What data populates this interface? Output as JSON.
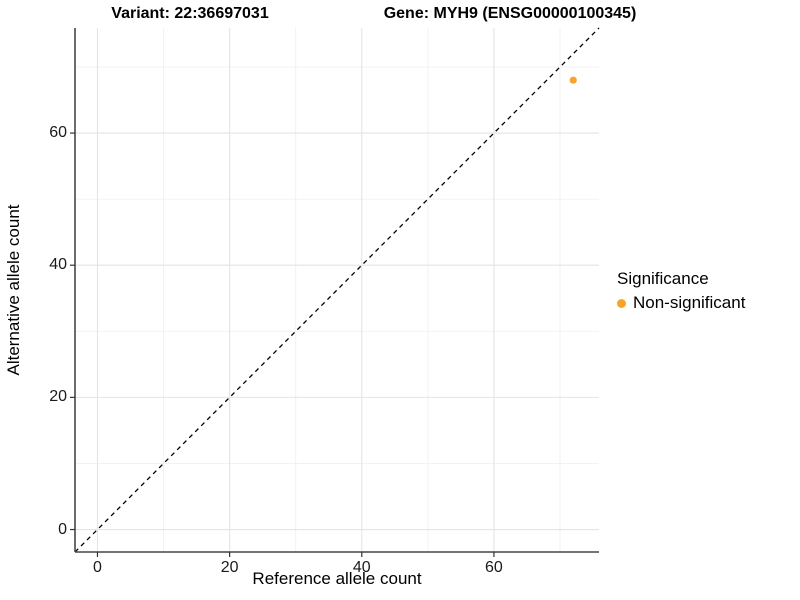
{
  "titles": {
    "variant": "Variant: 22:36697031",
    "gene": "Gene: MYH9 (ENSG00000100345)"
  },
  "axes": {
    "x_label": "Reference allele count",
    "y_label": "Alternative allele count",
    "x_ticks": [
      0,
      20,
      40,
      60
    ],
    "y_ticks": [
      0,
      20,
      40,
      60
    ],
    "x_tick_labels": [
      "0",
      "20",
      "40",
      "60"
    ],
    "y_tick_labels": [
      "0",
      "20",
      "40",
      "60"
    ],
    "x_minor_ticks": [
      10,
      30,
      50,
      70
    ],
    "y_minor_ticks": [
      10,
      30,
      50,
      70
    ],
    "xlim": [
      -3.4,
      75.9
    ],
    "ylim": [
      -3.4,
      75.9
    ]
  },
  "legend": {
    "title": "Significance",
    "items": [
      {
        "label": "Non-significant",
        "color": "#F8A428"
      }
    ]
  },
  "colors": {
    "point": "#F8A428",
    "major_grid": "#E4E4E4",
    "minor_grid": "#F1F1F1",
    "axis_line": "#474747",
    "tick_mark": "#333333",
    "identity_line": "#000000"
  },
  "chart_data": {
    "type": "scatter",
    "title": "Variant: 22:36697031    Gene: MYH9 (ENSG00000100345)",
    "xlabel": "Reference allele count",
    "ylabel": "Alternative allele count",
    "xlim": [
      -3.4,
      75.9
    ],
    "ylim": [
      -3.4,
      75.9
    ],
    "x_ticks": [
      0,
      20,
      40,
      60
    ],
    "y_ticks": [
      0,
      20,
      40,
      60
    ],
    "grid": "major+minor",
    "legend_position": "right",
    "legend_title": "Significance",
    "series": [
      {
        "name": "Non-significant",
        "color": "#F8A428",
        "points": [
          {
            "x": 72,
            "y": 68
          }
        ]
      }
    ],
    "reference_line": {
      "type": "identity",
      "equation": "y = x",
      "style": "dashed",
      "color": "#000000"
    }
  }
}
